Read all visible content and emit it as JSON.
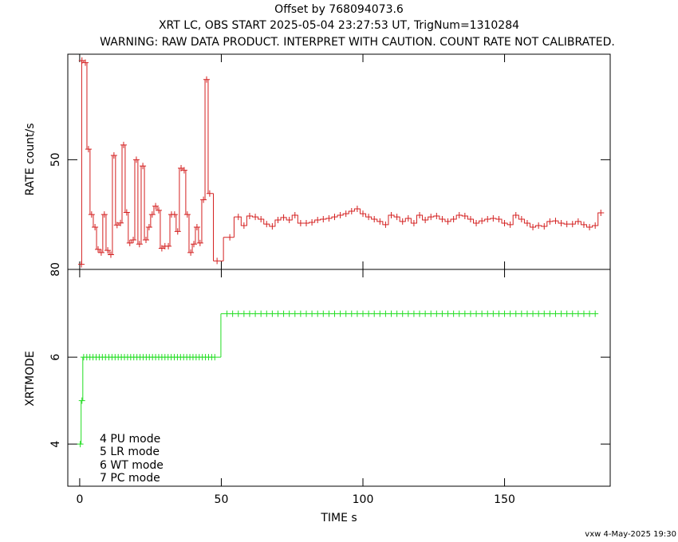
{
  "chart_data": [
    {
      "type": "line",
      "title": "Offset by 768094073.6",
      "subtitle": "XRT LC, OBS START 2025-05-04 23:27:53 UT, TrigNum=1310284",
      "warning": "WARNING: RAW DATA PRODUCT. INTERPRET WITH CAUTION. COUNT RATE NOT CALIBRATED.",
      "ylabel": "RATE  count/s",
      "xlim": [
        -4.2,
        187.3
      ],
      "ylim": [
        44.8,
        55
      ],
      "yticks": [
        50
      ],
      "annotations": [
        "80"
      ],
      "color": "#d42020",
      "x": [
        0.6,
        0.8,
        2.0,
        3.1,
        4.2,
        5.4,
        6.5,
        7.6,
        8.7,
        9.9,
        11.0,
        12.1,
        13.2,
        14.4,
        15.5,
        16.6,
        17.7,
        18.9,
        20.0,
        21.1,
        22.3,
        23.4,
        24.5,
        25.6,
        26.8,
        27.9,
        29.0,
        30.1,
        31.3,
        32.4,
        33.5,
        34.6,
        35.8,
        36.9,
        38.0,
        39.2,
        40.3,
        41.4,
        42.5,
        43.7,
        44.8,
        45.9,
        48.5,
        53,
        56,
        58,
        60,
        62,
        64,
        66,
        68,
        70,
        72,
        74,
        76,
        78,
        80,
        82,
        84,
        86,
        88,
        90,
        92,
        94,
        96,
        98,
        100,
        102,
        104,
        106,
        108,
        110,
        112,
        114,
        116,
        118,
        120,
        122,
        124,
        126,
        128,
        130,
        132,
        134,
        136,
        138,
        140,
        142,
        144,
        146,
        148,
        150,
        152,
        154,
        156,
        158,
        160,
        162,
        164,
        166,
        168,
        170,
        172,
        174,
        176,
        178,
        180,
        182,
        184
      ],
      "values": [
        45.04,
        54.7,
        54.6,
        50.5,
        47.4,
        46.8,
        45.75,
        45.6,
        47.4,
        45.7,
        45.5,
        50.2,
        46.9,
        47.0,
        50.7,
        47.5,
        46.05,
        46.2,
        50.0,
        46.0,
        49.7,
        46.2,
        46.8,
        47.4,
        47.8,
        47.6,
        45.8,
        45.9,
        45.9,
        47.4,
        47.4,
        46.6,
        49.6,
        49.5,
        47.4,
        45.6,
        46.0,
        46.8,
        46.05,
        48.1,
        53.8,
        48.4,
        45.2,
        46.32,
        47.29,
        46.88,
        47.33,
        47.29,
        47.18,
        46.95,
        46.84,
        47.14,
        47.26,
        47.14,
        47.37,
        46.99,
        46.99,
        47.03,
        47.14,
        47.18,
        47.22,
        47.29,
        47.37,
        47.44,
        47.56,
        47.67,
        47.44,
        47.29,
        47.18,
        47.07,
        46.92,
        47.37,
        47.29,
        47.07,
        47.22,
        46.99,
        47.37,
        47.14,
        47.29,
        47.33,
        47.18,
        47.07,
        47.18,
        47.37,
        47.33,
        47.18,
        46.99,
        47.1,
        47.18,
        47.22,
        47.18,
        46.99,
        46.92,
        47.37,
        47.18,
        46.99,
        46.8,
        46.88,
        46.84,
        47.07,
        47.1,
        46.99,
        46.95,
        46.95,
        47.07,
        46.92,
        46.8,
        46.88,
        47.48
      ]
    },
    {
      "type": "line",
      "ylabel": "XRTMODE",
      "xlabel": "TIME  s",
      "xlim": [
        -4.2,
        187.3
      ],
      "ylim": [
        3.03,
        8.02
      ],
      "yticks": [
        4,
        6
      ],
      "xticks": [
        0,
        50,
        100,
        150
      ],
      "annotations": [
        "4 PU mode",
        "5 LR mode",
        "6 WT mode",
        "7 PC mode"
      ],
      "color": "#22dd22",
      "x": [
        0.2,
        0.8,
        1.4,
        2.5,
        3.6,
        4.7,
        5.8,
        6.9,
        8.0,
        9.1,
        10.3,
        11.4,
        12.5,
        13.6,
        14.7,
        15.8,
        16.9,
        18.0,
        19.1,
        20.2,
        21.3,
        22.4,
        23.5,
        24.6,
        25.7,
        26.8,
        27.9,
        29.0,
        30.1,
        31.2,
        32.3,
        33.4,
        34.5,
        35.6,
        36.7,
        37.8,
        38.9,
        40.0,
        41.1,
        42.2,
        43.3,
        44.4,
        45.5,
        46.6,
        47.7,
        52,
        54,
        56,
        58,
        60,
        62,
        64,
        66,
        68,
        70,
        72,
        74,
        76,
        78,
        80,
        82,
        84,
        86,
        88,
        90,
        92,
        94,
        96,
        98,
        100,
        102,
        104,
        106,
        108,
        110,
        112,
        114,
        116,
        118,
        120,
        122,
        124,
        126,
        128,
        130,
        132,
        134,
        136,
        138,
        140,
        142,
        144,
        146,
        148,
        150,
        152,
        154,
        156,
        158,
        160,
        162,
        164,
        166,
        168,
        170,
        172,
        174,
        176,
        178,
        180,
        182
      ],
      "values": [
        4,
        5,
        6,
        6,
        6,
        6,
        6,
        6,
        6,
        6,
        6,
        6,
        6,
        6,
        6,
        6,
        6,
        6,
        6,
        6,
        6,
        6,
        6,
        6,
        6,
        6,
        6,
        6,
        6,
        6,
        6,
        6,
        6,
        6,
        6,
        6,
        6,
        6,
        6,
        6,
        6,
        6,
        6,
        6,
        6,
        7,
        7,
        7,
        7,
        7,
        7,
        7,
        7,
        7,
        7,
        7,
        7,
        7,
        7,
        7,
        7,
        7,
        7,
        7,
        7,
        7,
        7,
        7,
        7,
        7,
        7,
        7,
        7,
        7,
        7,
        7,
        7,
        7,
        7,
        7,
        7,
        7,
        7,
        7,
        7,
        7,
        7,
        7,
        7,
        7,
        7,
        7,
        7,
        7,
        7,
        7,
        7,
        7,
        7,
        7,
        7,
        7,
        7,
        7,
        7,
        7,
        7,
        7,
        7,
        7,
        7
      ]
    }
  ],
  "footer": "vxw  4-May-2025 19:30"
}
